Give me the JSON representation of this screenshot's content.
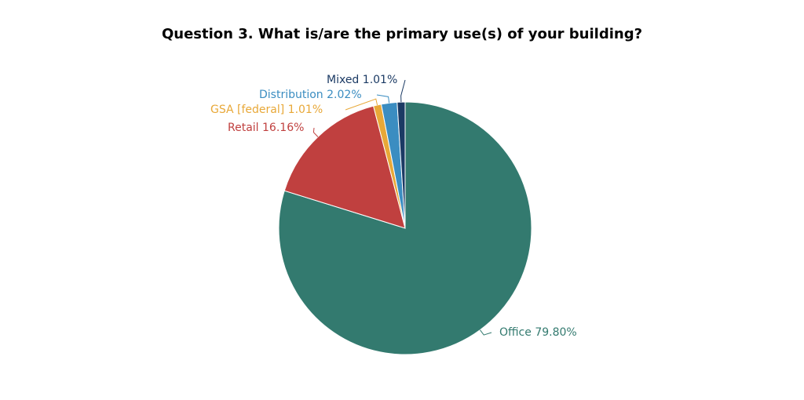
{
  "chart_data": {
    "type": "pie",
    "title": "Question 3. What is/are the primary use(s) of your building?",
    "categories": [
      "Office",
      "Retail",
      "GSA [federal]",
      "Distribution",
      "Mixed"
    ],
    "values": [
      79.8,
      16.16,
      1.01,
      2.02,
      1.01
    ],
    "value_labels": [
      "79.80%",
      "16.16%",
      "1.01%",
      "2.02%",
      "1.01%"
    ],
    "colors": [
      "#337a6f",
      "#c0403f",
      "#e8a838",
      "#3b8dc1",
      "#1b3a64"
    ]
  }
}
